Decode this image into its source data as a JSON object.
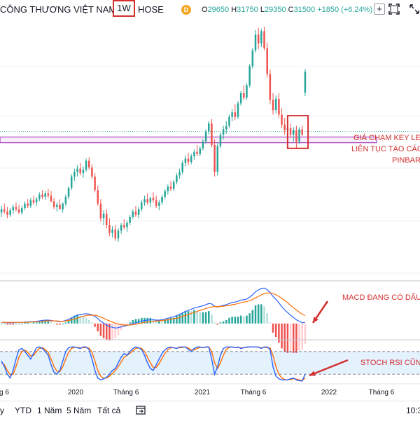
{
  "header": {
    "title": "CÔNG THƯƠNG VIỆT NAM",
    "timeframe": "1W",
    "exchange": "HOSE",
    "badge": "D",
    "ohlc": {
      "o_label": "O",
      "o_value": "29650",
      "h_label": "H",
      "h_value": "31750",
      "l_label": "L",
      "l_value": "29350",
      "c_label": "C",
      "c_value": "31500",
      "change": "+1850 (+6.24%)"
    },
    "plus_label": "+"
  },
  "annotations": {
    "key_level_1": "GIÁ CHẠM KEY LEV",
    "key_level_2": "LIÊN TỤC TẠO CÁC",
    "key_level_3": "PINBAR + I",
    "macd": "MACD ĐANG CÓ DẤU",
    "stoch": "STOCH RSI CŨNG"
  },
  "time_axis": [
    "g 6",
    "2020",
    "Tháng 6",
    "2021",
    "Tháng 6",
    "2022",
    "Tháng 6"
  ],
  "ranges": [
    "y",
    "YTD",
    "1 Năm",
    "5 Năm",
    "Tất cả"
  ],
  "clock": "10:3",
  "colors": {
    "up": "#26a69a",
    "down": "#ef5350",
    "accent_red": "#d32f2f",
    "zone": "#9c27b0",
    "macd_line": "#2962ff",
    "signal_line": "#ff6d00",
    "stoch_k": "#2962ff",
    "stoch_d": "#ff6d00"
  },
  "chart_data": {
    "type": "candlestick",
    "title": "",
    "price_range": [
      13000,
      36000
    ],
    "key_level_zone": [
      25200,
      25700
    ],
    "key_level_line": 26200,
    "candles": [
      [
        19000,
        19600,
        18600,
        19300
      ],
      [
        19300,
        19800,
        18900,
        19100
      ],
      [
        19100,
        19500,
        18500,
        18800
      ],
      [
        18800,
        19400,
        18600,
        19200
      ],
      [
        19200,
        19700,
        18900,
        19500
      ],
      [
        19500,
        19900,
        19100,
        19300
      ],
      [
        19300,
        19700,
        18900,
        19000
      ],
      [
        19000,
        19600,
        18800,
        19400
      ],
      [
        19400,
        20000,
        19200,
        19800
      ],
      [
        19800,
        20200,
        19400,
        19600
      ],
      [
        19600,
        20300,
        19400,
        20100
      ],
      [
        20100,
        20500,
        19700,
        19900
      ],
      [
        19900,
        20400,
        19600,
        20200
      ],
      [
        20200,
        20800,
        20000,
        20600
      ],
      [
        20600,
        21000,
        20200,
        20400
      ],
      [
        20400,
        20900,
        20100,
        20700
      ],
      [
        20700,
        21100,
        20300,
        20500
      ],
      [
        20500,
        20900,
        19900,
        20000
      ],
      [
        20000,
        20300,
        19300,
        19500
      ],
      [
        19500,
        19900,
        19100,
        19700
      ],
      [
        19700,
        20200,
        19400,
        19300
      ],
      [
        19300,
        19900,
        19000,
        19800
      ],
      [
        19800,
        20600,
        19600,
        20400
      ],
      [
        20400,
        21300,
        20200,
        21200
      ],
      [
        21200,
        22400,
        21000,
        22200
      ],
      [
        22200,
        22900,
        21800,
        22600
      ],
      [
        22600,
        23200,
        22200,
        22900
      ],
      [
        22900,
        23400,
        22300,
        22500
      ],
      [
        22500,
        23100,
        22100,
        22800
      ],
      [
        22800,
        23800,
        22600,
        23600
      ],
      [
        23600,
        23900,
        22800,
        23000
      ],
      [
        23000,
        23300,
        22000,
        22200
      ],
      [
        22200,
        22500,
        20800,
        21000
      ],
      [
        21000,
        21400,
        19600,
        19800
      ],
      [
        19800,
        20200,
        18200,
        18500
      ],
      [
        18500,
        19200,
        17900,
        18900
      ],
      [
        18900,
        19300,
        17600,
        17900
      ],
      [
        17900,
        18500,
        16900,
        17200
      ],
      [
        17200,
        17800,
        16800,
        17500
      ],
      [
        17500,
        17900,
        16500,
        16700
      ],
      [
        16700,
        17600,
        16400,
        17400
      ],
      [
        17400,
        18100,
        17100,
        17900
      ],
      [
        17900,
        18400,
        17500,
        17700
      ],
      [
        17700,
        18300,
        17300,
        18100
      ],
      [
        18100,
        18800,
        17900,
        18600
      ],
      [
        18600,
        19300,
        18400,
        19100
      ],
      [
        19100,
        19600,
        18600,
        18800
      ],
      [
        18800,
        19500,
        18500,
        19300
      ],
      [
        19300,
        20100,
        19100,
        19900
      ],
      [
        19900,
        20500,
        19600,
        20200
      ],
      [
        20200,
        20700,
        19700,
        19900
      ],
      [
        19900,
        20400,
        19500,
        20300
      ],
      [
        20300,
        20800,
        19900,
        20100
      ],
      [
        20100,
        20500,
        19400,
        19600
      ],
      [
        19600,
        20100,
        19200,
        19900
      ],
      [
        19900,
        20600,
        19700,
        20400
      ],
      [
        20400,
        21100,
        20200,
        20900
      ],
      [
        20900,
        21500,
        20600,
        21300
      ],
      [
        21300,
        21800,
        20900,
        21100
      ],
      [
        21100,
        21900,
        20900,
        21700
      ],
      [
        21700,
        22500,
        21500,
        22300
      ],
      [
        22300,
        22900,
        22000,
        22600
      ],
      [
        22600,
        23600,
        22400,
        23400
      ],
      [
        23400,
        24100,
        23100,
        23800
      ],
      [
        23800,
        24300,
        23200,
        23500
      ],
      [
        23500,
        24200,
        23300,
        24000
      ],
      [
        24000,
        24600,
        23700,
        24400
      ],
      [
        24400,
        25000,
        24000,
        24200
      ],
      [
        24200,
        24900,
        24000,
        24700
      ],
      [
        24700,
        25500,
        24500,
        25300
      ],
      [
        25300,
        26400,
        25100,
        26200
      ],
      [
        26200,
        27100,
        25900,
        26900
      ],
      [
        26900,
        27300,
        24800,
        25000
      ],
      [
        25000,
        25500,
        22200,
        22600
      ],
      [
        22600,
        25200,
        22300,
        24900
      ],
      [
        24900,
        26100,
        24700,
        25900
      ],
      [
        25900,
        26700,
        25500,
        26400
      ],
      [
        26400,
        27100,
        26000,
        26700
      ],
      [
        26700,
        27700,
        26500,
        27500
      ],
      [
        27500,
        28200,
        27100,
        27900
      ],
      [
        27900,
        28600,
        27200,
        27500
      ],
      [
        27500,
        28900,
        27300,
        28700
      ],
      [
        28700,
        29800,
        28500,
        29600
      ],
      [
        29600,
        30300,
        29000,
        29200
      ],
      [
        29200,
        30500,
        29000,
        30300
      ],
      [
        30300,
        32200,
        30100,
        32000
      ],
      [
        32000,
        33600,
        31800,
        33400
      ],
      [
        33400,
        35200,
        33200,
        34800
      ],
      [
        34800,
        35400,
        33500,
        34000
      ],
      [
        34000,
        35300,
        33700,
        35100
      ],
      [
        35100,
        35500,
        33400,
        33600
      ],
      [
        33600,
        34100,
        31000,
        31300
      ],
      [
        31300,
        31700,
        28600,
        29000
      ],
      [
        29000,
        29600,
        27700,
        28100
      ],
      [
        28100,
        29400,
        27800,
        29100
      ],
      [
        29100,
        29600,
        27400,
        27700
      ],
      [
        27700,
        28300,
        26500,
        26800
      ],
      [
        26800,
        27400,
        25900,
        26300
      ],
      [
        26300,
        26900,
        25800,
        26500
      ],
      [
        26500,
        26900,
        25600,
        25900
      ],
      [
        25900,
        26600,
        25300,
        26300
      ],
      [
        26300,
        26700,
        24700,
        25300
      ],
      [
        25300,
        26600,
        25100,
        26400
      ],
      [
        26400,
        26700,
        25800,
        25900
      ],
      [
        29650,
        31750,
        29350,
        31500
      ]
    ],
    "macd": {
      "macd_line": [
        0.3,
        0.3,
        0.2,
        0.2,
        0.2,
        0.3,
        0.3,
        0.3,
        0.4,
        0.4,
        0.5,
        0.5,
        0.6,
        0.7,
        0.8,
        0.9,
        0.9,
        0.8,
        0.7,
        0.6,
        0.5,
        0.6,
        0.8,
        1.1,
        1.5,
        1.9,
        2.2,
        2.4,
        2.5,
        2.6,
        2.5,
        2.3,
        1.9,
        1.3,
        0.6,
        0.1,
        -0.4,
        -0.8,
        -1.0,
        -1.2,
        -1.1,
        -0.9,
        -0.7,
        -0.5,
        -0.3,
        0.0,
        0.2,
        0.4,
        0.6,
        0.8,
        0.9,
        1.0,
        1.0,
        0.9,
        0.9,
        1.0,
        1.2,
        1.4,
        1.6,
        1.8,
        2.1,
        2.4,
        2.8,
        3.2,
        3.5,
        3.8,
        4.1,
        4.3,
        4.5,
        4.7,
        5.0,
        5.3,
        5.2,
        4.6,
        4.4,
        4.6,
        4.8,
        5.0,
        5.3,
        5.6,
        5.7,
        5.9,
        6.2,
        6.3,
        6.5,
        7.0,
        7.6,
        8.4,
        8.9,
        9.3,
        9.4,
        9.0,
        8.2,
        7.2,
        6.4,
        5.5,
        4.5,
        3.6,
        2.9,
        2.2,
        1.6,
        1.0,
        0.6,
        0.2,
        0.3
      ],
      "signal": [
        0.3,
        0.3,
        0.3,
        0.3,
        0.3,
        0.3,
        0.3,
        0.3,
        0.3,
        0.3,
        0.4,
        0.4,
        0.5,
        0.5,
        0.6,
        0.7,
        0.7,
        0.7,
        0.7,
        0.7,
        0.6,
        0.6,
        0.7,
        0.8,
        1.0,
        1.2,
        1.4,
        1.7,
        1.9,
        2.1,
        2.2,
        2.2,
        2.2,
        2.0,
        1.7,
        1.4,
        1.0,
        0.7,
        0.4,
        0.1,
        -0.1,
        -0.3,
        -0.4,
        -0.4,
        -0.4,
        -0.3,
        -0.2,
        0.0,
        0.1,
        0.3,
        0.4,
        0.5,
        0.6,
        0.7,
        0.7,
        0.8,
        0.9,
        1.0,
        1.1,
        1.3,
        1.4,
        1.6,
        1.9,
        2.1,
        2.4,
        2.7,
        2.9,
        3.2,
        3.5,
        3.7,
        4.0,
        4.2,
        4.4,
        4.5,
        4.5,
        4.5,
        4.6,
        4.7,
        4.8,
        5.0,
        5.1,
        5.3,
        5.5,
        5.7,
        5.8,
        6.1,
        6.4,
        6.8,
        7.2,
        7.6,
        7.9,
        8.1,
        8.1,
        8.0,
        7.6,
        7.2,
        6.7,
        6.1,
        5.5,
        4.8,
        4.2,
        3.6,
        3.0,
        2.5,
        2.1
      ]
    },
    "stoch_rsi": {
      "k": [
        55,
        40,
        20,
        10,
        30,
        60,
        85,
        88,
        80,
        70,
        60,
        75,
        90,
        92,
        88,
        80,
        70,
        45,
        25,
        20,
        30,
        55,
        80,
        90,
        92,
        92,
        90,
        88,
        92,
        92,
        85,
        60,
        30,
        10,
        5,
        8,
        12,
        20,
        30,
        35,
        50,
        65,
        75,
        70,
        80,
        88,
        92,
        90,
        85,
        70,
        50,
        35,
        30,
        45,
        60,
        75,
        85,
        90,
        92,
        90,
        88,
        92,
        92,
        92,
        85,
        80,
        88,
        92,
        92,
        90,
        92,
        92,
        60,
        20,
        40,
        70,
        88,
        92,
        92,
        92,
        90,
        92,
        88,
        90,
        92,
        92,
        92,
        92,
        92,
        88,
        92,
        92,
        85,
        40,
        15,
        8,
        5,
        5,
        5,
        8,
        10,
        5,
        3,
        2,
        20
      ],
      "d": [
        50,
        45,
        30,
        18,
        20,
        40,
        65,
        80,
        84,
        78,
        68,
        70,
        80,
        88,
        90,
        85,
        78,
        60,
        40,
        28,
        27,
        40,
        60,
        78,
        88,
        91,
        91,
        90,
        90,
        91,
        89,
        78,
        55,
        30,
        15,
        9,
        10,
        15,
        22,
        30,
        40,
        52,
        65,
        70,
        75,
        82,
        88,
        90,
        88,
        80,
        65,
        50,
        38,
        38,
        48,
        62,
        75,
        85,
        90,
        90,
        89,
        90,
        91,
        92,
        89,
        84,
        84,
        88,
        91,
        91,
        91,
        92,
        80,
        50,
        35,
        50,
        70,
        86,
        91,
        92,
        91,
        91,
        90,
        90,
        91,
        92,
        92,
        92,
        92,
        90,
        91,
        91,
        89,
        70,
        40,
        20,
        10,
        6,
        5,
        6,
        8,
        7,
        5,
        3,
        10
      ]
    }
  }
}
